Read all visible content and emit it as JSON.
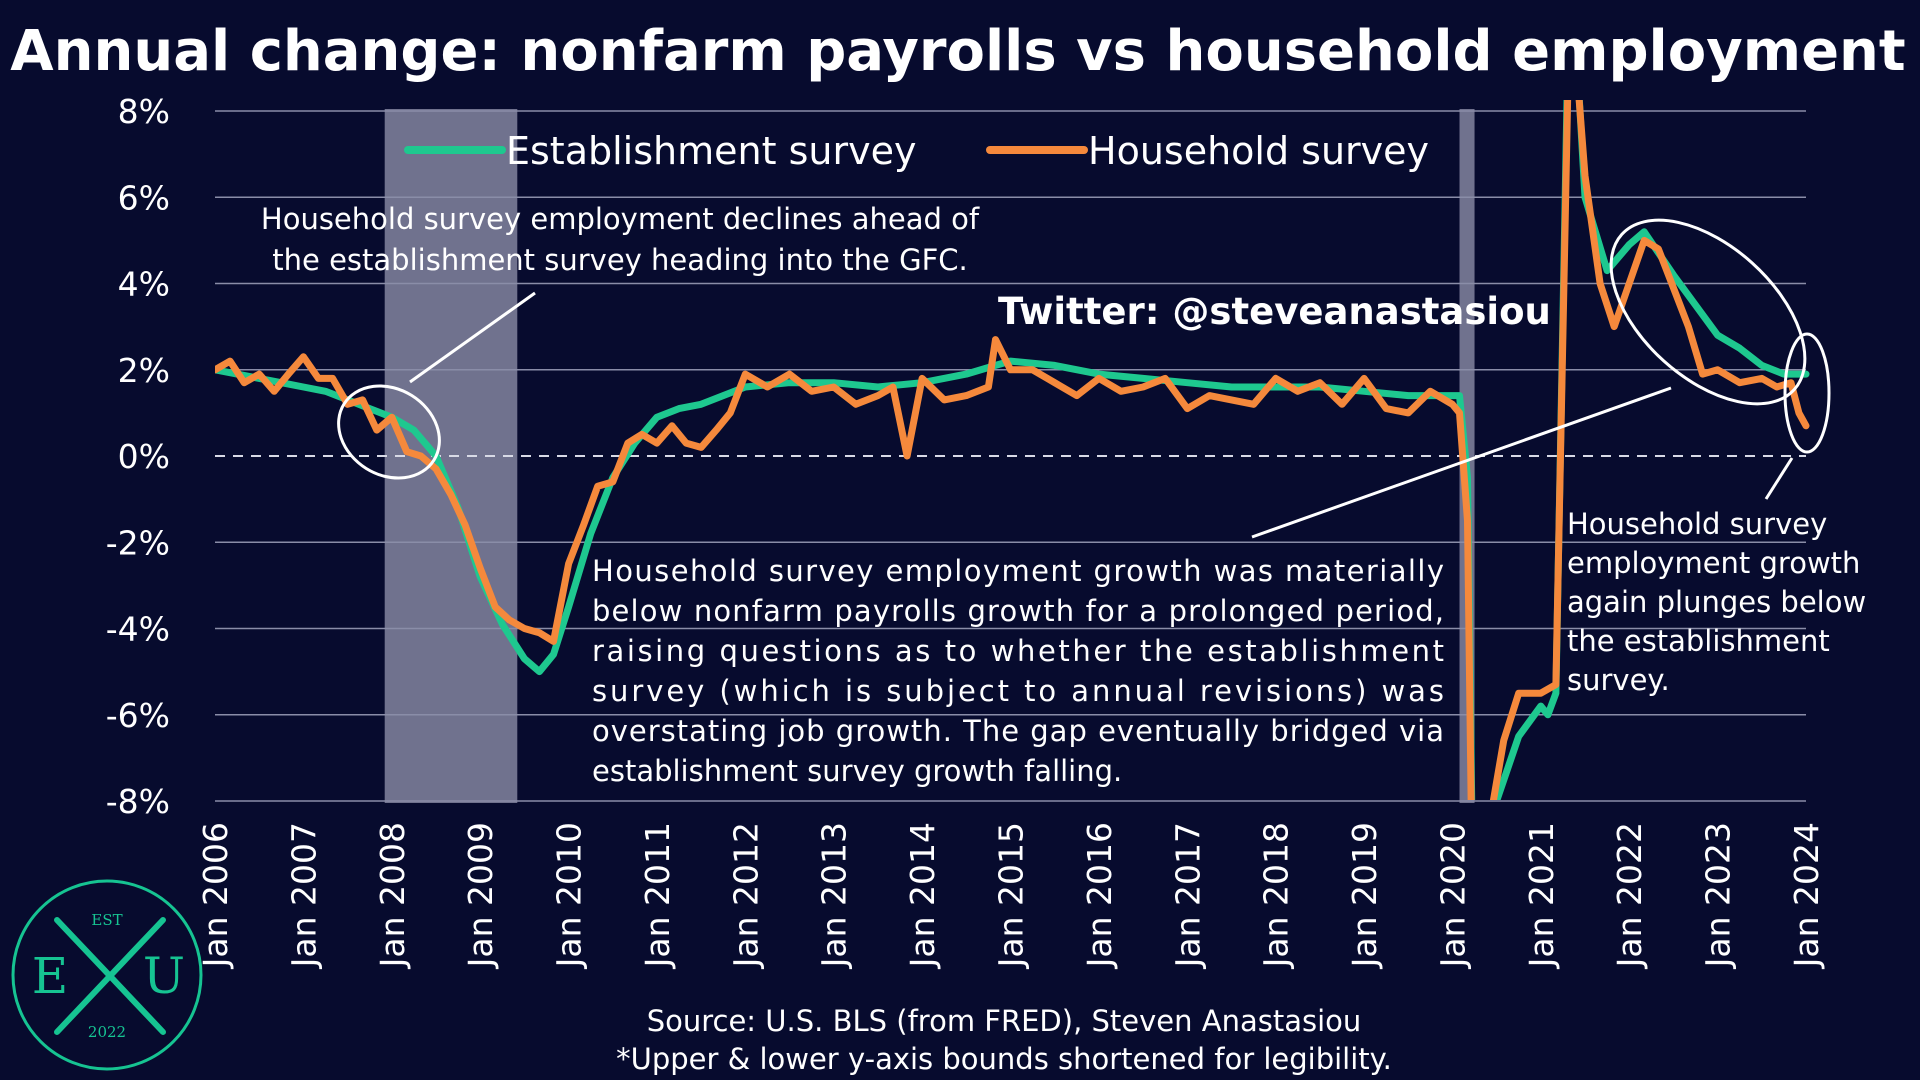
{
  "colors": {
    "background": "#070b2e",
    "establishment": "#1ec88f",
    "household": "#f5893c",
    "recession": "#9a9ab4",
    "grid": "#8a8da8",
    "text": "#ffffff",
    "logo": "#16c492"
  },
  "chart_data": {
    "type": "line",
    "title": "Annual change: nonfarm payrolls vs household employment",
    "ylim": [
      -8,
      8
    ],
    "y_ticks": [
      "8%",
      "6%",
      "4%",
      "2%",
      "0%",
      "-2%",
      "-4%",
      "-6%",
      "-8%"
    ],
    "y_tick_values": [
      8,
      6,
      4,
      2,
      0,
      -2,
      -4,
      -6,
      -8
    ],
    "x_ticks": [
      "Jan 2006",
      "Jan 2007",
      "Jan 2008",
      "Jan 2009",
      "Jan 2010",
      "Jan 2011",
      "Jan 2012",
      "Jan 2013",
      "Jan 2014",
      "Jan 2015",
      "Jan 2016",
      "Jan 2017",
      "Jan 2018",
      "Jan 2019",
      "Jan 2020",
      "Jan 2021",
      "Jan 2022",
      "Jan 2023",
      "Jan 2024"
    ],
    "x_tick_values": [
      2006,
      2007,
      2008,
      2009,
      2010,
      2011,
      2012,
      2013,
      2014,
      2015,
      2016,
      2017,
      2018,
      2019,
      2020,
      2021,
      2022,
      2023,
      2024
    ],
    "xlim": [
      2006,
      2024
    ],
    "grid": "horizontal",
    "zero_line": "dashed",
    "legend_position": "top",
    "recessions": [
      {
        "start": 2007.92,
        "end": 2009.42
      },
      {
        "start": 2020.08,
        "end": 2020.25
      }
    ],
    "series": [
      {
        "name": "Establishment survey",
        "color": "#1ec88f",
        "points": [
          [
            2006.0,
            2.0
          ],
          [
            2006.25,
            1.9
          ],
          [
            2006.5,
            1.8
          ],
          [
            2006.75,
            1.7
          ],
          [
            2007.0,
            1.6
          ],
          [
            2007.25,
            1.5
          ],
          [
            2007.5,
            1.3
          ],
          [
            2007.75,
            1.1
          ],
          [
            2008.0,
            0.9
          ],
          [
            2008.25,
            0.6
          ],
          [
            2008.5,
            0.0
          ],
          [
            2008.75,
            -1.2
          ],
          [
            2009.0,
            -2.8
          ],
          [
            2009.25,
            -3.9
          ],
          [
            2009.5,
            -4.7
          ],
          [
            2009.67,
            -5.0
          ],
          [
            2009.83,
            -4.6
          ],
          [
            2010.0,
            -3.5
          ],
          [
            2010.25,
            -1.8
          ],
          [
            2010.5,
            -0.5
          ],
          [
            2010.75,
            0.3
          ],
          [
            2011.0,
            0.9
          ],
          [
            2011.25,
            1.1
          ],
          [
            2011.5,
            1.2
          ],
          [
            2011.75,
            1.4
          ],
          [
            2012.0,
            1.6
          ],
          [
            2012.5,
            1.7
          ],
          [
            2013.0,
            1.7
          ],
          [
            2013.5,
            1.6
          ],
          [
            2014.0,
            1.7
          ],
          [
            2014.5,
            1.9
          ],
          [
            2014.83,
            2.1
          ],
          [
            2015.0,
            2.2
          ],
          [
            2015.5,
            2.1
          ],
          [
            2016.0,
            1.9
          ],
          [
            2016.5,
            1.8
          ],
          [
            2017.0,
            1.7
          ],
          [
            2017.5,
            1.6
          ],
          [
            2018.0,
            1.6
          ],
          [
            2018.5,
            1.6
          ],
          [
            2019.0,
            1.5
          ],
          [
            2019.5,
            1.4
          ],
          [
            2020.0,
            1.4
          ],
          [
            2020.08,
            1.4
          ],
          [
            2020.17,
            -0.5
          ],
          [
            2020.25,
            -13.0
          ],
          [
            2020.5,
            -8.0
          ],
          [
            2020.75,
            -6.5
          ],
          [
            2021.0,
            -5.8
          ],
          [
            2021.08,
            -6.0
          ],
          [
            2021.17,
            -5.5
          ],
          [
            2021.33,
            12.0
          ],
          [
            2021.5,
            6.0
          ],
          [
            2021.75,
            4.3
          ],
          [
            2022.0,
            4.9
          ],
          [
            2022.17,
            5.2
          ],
          [
            2022.5,
            4.2
          ],
          [
            2022.75,
            3.5
          ],
          [
            2023.0,
            2.8
          ],
          [
            2023.25,
            2.5
          ],
          [
            2023.5,
            2.1
          ],
          [
            2023.75,
            1.9
          ],
          [
            2024.0,
            1.9
          ]
        ]
      },
      {
        "name": "Household survey",
        "color": "#f5893c",
        "points": [
          [
            2006.0,
            2.0
          ],
          [
            2006.17,
            2.2
          ],
          [
            2006.33,
            1.7
          ],
          [
            2006.5,
            1.9
          ],
          [
            2006.67,
            1.5
          ],
          [
            2006.83,
            1.9
          ],
          [
            2007.0,
            2.3
          ],
          [
            2007.17,
            1.8
          ],
          [
            2007.33,
            1.8
          ],
          [
            2007.5,
            1.2
          ],
          [
            2007.67,
            1.3
          ],
          [
            2007.83,
            0.6
          ],
          [
            2008.0,
            0.9
          ],
          [
            2008.17,
            0.1
          ],
          [
            2008.33,
            0.0
          ],
          [
            2008.5,
            -0.3
          ],
          [
            2008.67,
            -0.9
          ],
          [
            2008.83,
            -1.6
          ],
          [
            2009.0,
            -2.6
          ],
          [
            2009.17,
            -3.5
          ],
          [
            2009.33,
            -3.8
          ],
          [
            2009.5,
            -4.0
          ],
          [
            2009.67,
            -4.1
          ],
          [
            2009.83,
            -4.3
          ],
          [
            2010.0,
            -2.5
          ],
          [
            2010.17,
            -1.6
          ],
          [
            2010.33,
            -0.7
          ],
          [
            2010.5,
            -0.6
          ],
          [
            2010.67,
            0.3
          ],
          [
            2010.83,
            0.5
          ],
          [
            2011.0,
            0.3
          ],
          [
            2011.17,
            0.7
          ],
          [
            2011.33,
            0.3
          ],
          [
            2011.5,
            0.2
          ],
          [
            2011.67,
            0.6
          ],
          [
            2011.83,
            1.0
          ],
          [
            2012.0,
            1.9
          ],
          [
            2012.25,
            1.6
          ],
          [
            2012.5,
            1.9
          ],
          [
            2012.75,
            1.5
          ],
          [
            2013.0,
            1.6
          ],
          [
            2013.25,
            1.2
          ],
          [
            2013.5,
            1.4
          ],
          [
            2013.67,
            1.6
          ],
          [
            2013.83,
            0.0
          ],
          [
            2014.0,
            1.8
          ],
          [
            2014.25,
            1.3
          ],
          [
            2014.5,
            1.4
          ],
          [
            2014.75,
            1.6
          ],
          [
            2014.83,
            2.7
          ],
          [
            2015.0,
            2.0
          ],
          [
            2015.25,
            2.0
          ],
          [
            2015.5,
            1.7
          ],
          [
            2015.75,
            1.4
          ],
          [
            2016.0,
            1.8
          ],
          [
            2016.25,
            1.5
          ],
          [
            2016.5,
            1.6
          ],
          [
            2016.75,
            1.8
          ],
          [
            2017.0,
            1.1
          ],
          [
            2017.25,
            1.4
          ],
          [
            2017.5,
            1.3
          ],
          [
            2017.75,
            1.2
          ],
          [
            2018.0,
            1.8
          ],
          [
            2018.25,
            1.5
          ],
          [
            2018.5,
            1.7
          ],
          [
            2018.75,
            1.2
          ],
          [
            2019.0,
            1.8
          ],
          [
            2019.25,
            1.1
          ],
          [
            2019.5,
            1.0
          ],
          [
            2019.75,
            1.5
          ],
          [
            2020.0,
            1.2
          ],
          [
            2020.08,
            1.0
          ],
          [
            2020.17,
            -1.5
          ],
          [
            2020.25,
            -14.0
          ],
          [
            2020.42,
            -8.5
          ],
          [
            2020.58,
            -6.6
          ],
          [
            2020.75,
            -5.5
          ],
          [
            2021.0,
            -5.5
          ],
          [
            2021.17,
            -5.3
          ],
          [
            2021.33,
            11.0
          ],
          [
            2021.5,
            6.5
          ],
          [
            2021.67,
            4.0
          ],
          [
            2021.83,
            3.0
          ],
          [
            2022.0,
            4.0
          ],
          [
            2022.17,
            5.0
          ],
          [
            2022.33,
            4.8
          ],
          [
            2022.5,
            3.9
          ],
          [
            2022.67,
            3.0
          ],
          [
            2022.83,
            1.9
          ],
          [
            2023.0,
            2.0
          ],
          [
            2023.25,
            1.7
          ],
          [
            2023.5,
            1.8
          ],
          [
            2023.67,
            1.6
          ],
          [
            2023.83,
            1.7
          ],
          [
            2023.92,
            1.0
          ],
          [
            2024.0,
            0.7
          ]
        ]
      }
    ]
  },
  "legend": {
    "establishment": "Establishment survey",
    "household": "Household survey"
  },
  "handle": "Twitter: @steveanastasiou",
  "annotations": {
    "gfc": [
      "Household survey employment declines ahead of",
      "the establishment survey heading into the GFC."
    ],
    "gap": [
      "Household survey employment growth was materially",
      "below nonfarm payrolls growth for a prolonged period,",
      "raising questions as to whether the establishment",
      "survey (which is subject to annual revisions) was",
      "overstating job growth. The gap eventually bridged via",
      "establishment survey growth falling."
    ],
    "plunge": [
      "Household survey",
      "employment growth",
      "again plunges below",
      "the establishment",
      "survey."
    ]
  },
  "source": [
    "Source: U.S. BLS (from FRED), Steven Anastasiou",
    "*Upper & lower y-axis bounds shortened for legibility."
  ],
  "logo": {
    "top": "EST",
    "left": "E",
    "right": "U",
    "bottom": "2022"
  }
}
